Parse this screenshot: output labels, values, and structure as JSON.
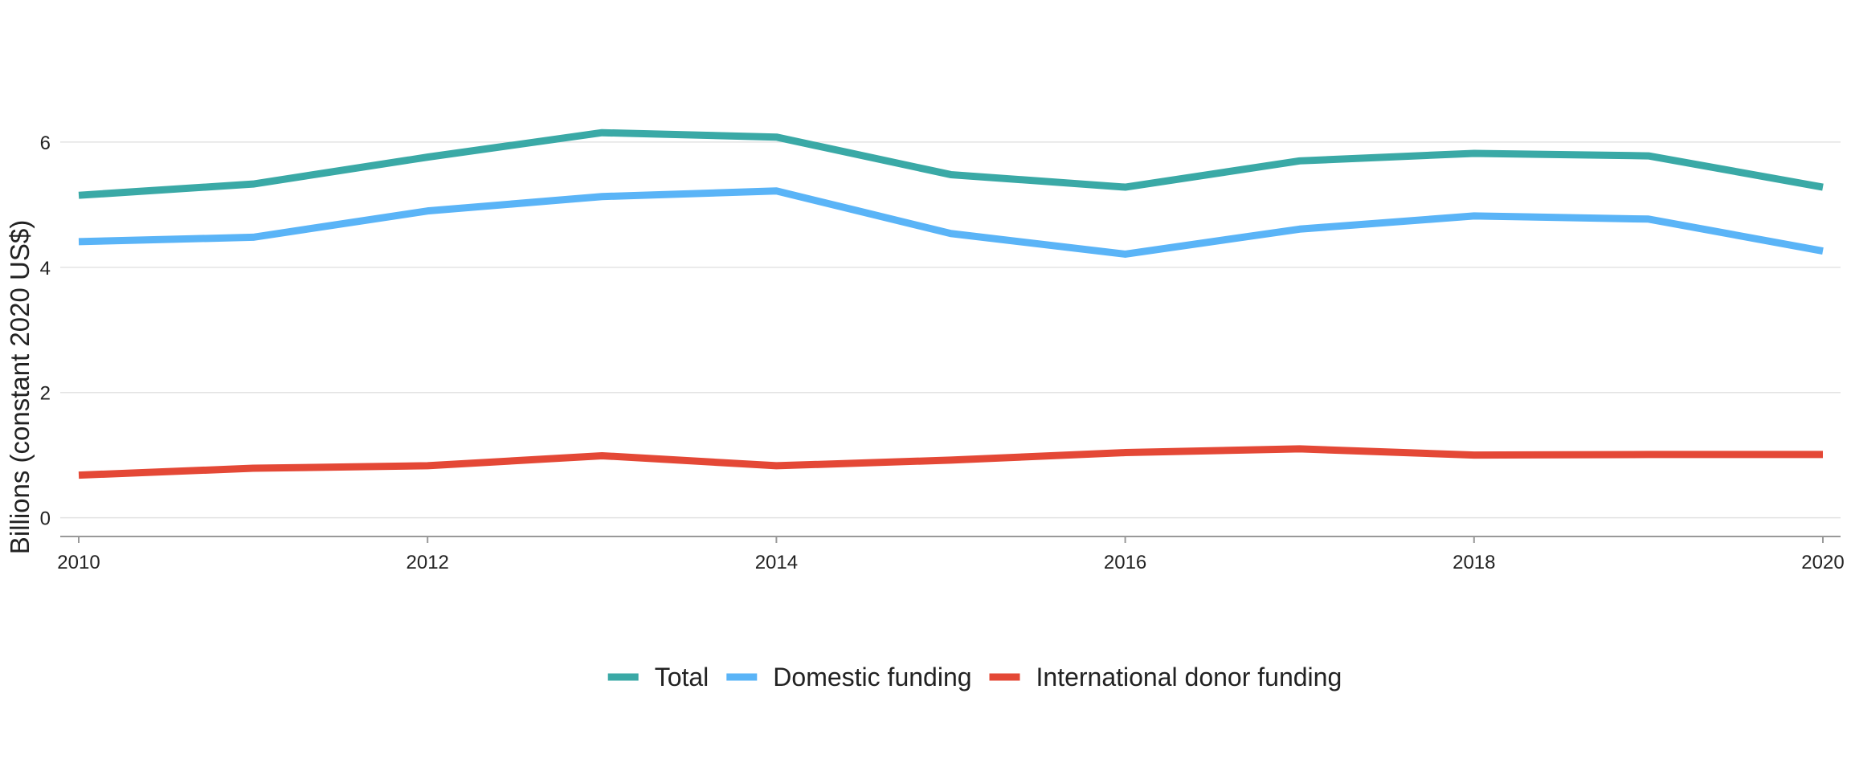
{
  "chart_data": {
    "type": "line",
    "title": "",
    "xlabel": "",
    "ylabel": "Billions (constant 2020 US$)",
    "x": [
      2010,
      2011,
      2012,
      2013,
      2014,
      2015,
      2016,
      2017,
      2018,
      2019,
      2020
    ],
    "xticks": [
      "2010",
      "2012",
      "2014",
      "2016",
      "2018",
      "2020"
    ],
    "yticks": [
      "0",
      "2",
      "4",
      "6"
    ],
    "xlim": [
      2010,
      2020
    ],
    "ylim": [
      -0.3,
      7.5
    ],
    "grid": "horizontal",
    "legend_position": "bottom",
    "series": [
      {
        "name": "Total",
        "color": "#3aa9a6",
        "values": [
          5.15,
          5.33,
          5.76,
          6.15,
          6.08,
          5.48,
          5.28,
          5.7,
          5.82,
          5.78,
          5.28
        ]
      },
      {
        "name": "Domestic funding",
        "color": "#5ab4f7",
        "values": [
          4.41,
          4.48,
          4.9,
          5.13,
          5.22,
          4.54,
          4.21,
          4.61,
          4.82,
          4.77,
          4.26
        ]
      },
      {
        "name": "International donor funding",
        "color": "#e44836",
        "values": [
          0.68,
          0.79,
          0.83,
          0.99,
          0.83,
          0.92,
          1.04,
          1.1,
          1.0,
          1.01,
          1.01
        ]
      }
    ]
  }
}
